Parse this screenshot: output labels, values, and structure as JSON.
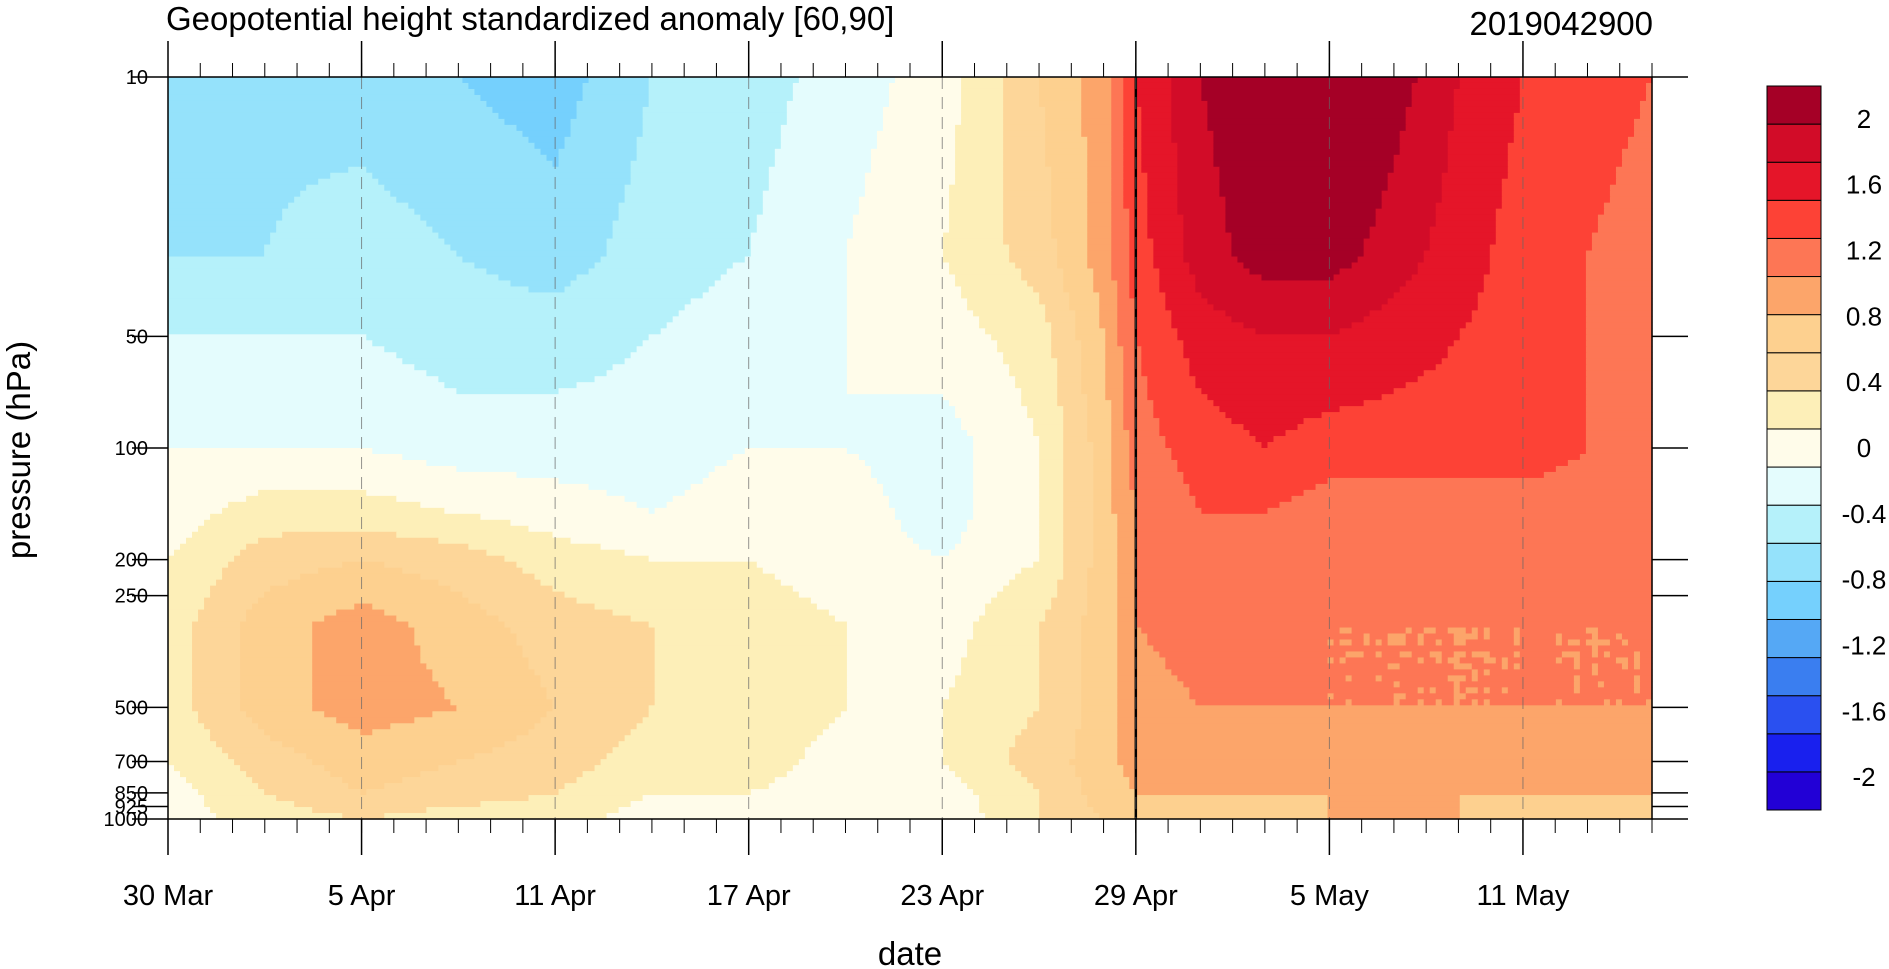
{
  "title": "Geopotential height standardized anomaly [60,90]",
  "date_stamp": "2019042900",
  "colors": {
    "levels": [
      "#2200d6",
      "#1920ee",
      "#2a50f0",
      "#3a7ef0",
      "#55a8f5",
      "#75d0fd",
      "#95e2fb",
      "#b5f1fa",
      "#e4fcfd",
      "#fffcea",
      "#fdefb8",
      "#fdd699",
      "#fdd08f",
      "#fca56a",
      "#fd7655",
      "#fd4236",
      "#e51529",
      "#d20c28",
      "#a50026"
    ],
    "contour_line": "#000000"
  },
  "chart_data": {
    "type": "heatmap",
    "title": "Geopotential height standardized anomaly [60,90]",
    "xlabel": "date",
    "ylabel": "pressure (hPa)",
    "x_ticks": [
      "30 Mar",
      "5 Apr",
      "11 Apr",
      "17 Apr",
      "23 Apr",
      "29 Apr",
      "5 May",
      "11 May"
    ],
    "x_range": [
      "2019-03-30",
      "2019-05-15"
    ],
    "y_scale": "log",
    "y_reversed": true,
    "y_ticks": [
      10,
      50,
      100,
      200,
      250,
      500,
      700,
      850,
      925,
      1000
    ],
    "y_range": [
      10,
      1000
    ],
    "analysis_date_line": "2019-04-29",
    "grid": "dashed vertical at x ticks",
    "colorbar": {
      "labels": [
        "2",
        "1.6",
        "1.2",
        "0.8",
        "0.4",
        "0",
        "-0.4",
        "-0.8",
        "-1.2",
        "-1.6",
        "-2"
      ],
      "min": -2.2,
      "max": 2.2,
      "step": 0.2
    },
    "x_dates": [
      "2019-03-30",
      "2019-04-02",
      "2019-04-05",
      "2019-04-08",
      "2019-04-11",
      "2019-04-14",
      "2019-04-17",
      "2019-04-20",
      "2019-04-23",
      "2019-04-26",
      "2019-04-28",
      "2019-04-29",
      "2019-05-01",
      "2019-05-03",
      "2019-05-05",
      "2019-05-07",
      "2019-05-09",
      "2019-05-11",
      "2019-05-13",
      "2019-05-15"
    ],
    "y_levels": [
      10,
      30,
      50,
      100,
      150,
      200,
      300,
      500,
      700,
      850,
      1000
    ],
    "values": [
      [
        -0.8,
        -0.85,
        -0.9,
        -1.0,
        -1.1,
        -0.8,
        -0.7,
        -0.5,
        -0.3,
        0.2,
        0.5,
        1.0,
        1.4,
        1.6,
        1.7,
        1.5,
        1.2,
        1.0,
        0.9,
        0.8
      ],
      [
        -0.8,
        -0.8,
        -0.7,
        -0.8,
        -0.9,
        -0.7,
        -0.6,
        -0.4,
        -0.2,
        0.1,
        0.5,
        0.9,
        1.3,
        1.5,
        1.5,
        1.3,
        1.1,
        0.9,
        0.8,
        0.7
      ],
      [
        -0.6,
        -0.6,
        -0.6,
        -0.7,
        -0.7,
        -0.6,
        -0.5,
        -0.4,
        -0.3,
        -0.1,
        0.4,
        0.8,
        1.1,
        1.2,
        1.2,
        1.1,
        1.0,
        0.9,
        0.8,
        0.7
      ],
      [
        -0.4,
        -0.4,
        -0.4,
        -0.5,
        -0.5,
        -0.5,
        -0.4,
        -0.4,
        -0.5,
        -0.2,
        0.3,
        0.7,
        0.9,
        1.0,
        0.9,
        0.9,
        0.9,
        0.9,
        0.8,
        0.7
      ],
      [
        -0.3,
        -0.1,
        -0.1,
        -0.2,
        -0.3,
        -0.4,
        -0.3,
        -0.3,
        -0.5,
        -0.2,
        0.3,
        0.6,
        0.8,
        0.8,
        0.7,
        0.7,
        0.7,
        0.7,
        0.7,
        0.7
      ],
      [
        -0.2,
        0.1,
        0.2,
        0.1,
        -0.1,
        -0.2,
        -0.2,
        -0.3,
        -0.4,
        -0.2,
        0.3,
        0.6,
        0.7,
        0.7,
        0.65,
        0.7,
        0.7,
        0.7,
        0.65,
        0.65
      ],
      [
        -0.1,
        0.3,
        0.5,
        0.3,
        0.1,
        0.0,
        -0.1,
        -0.2,
        -0.3,
        0.0,
        0.3,
        0.6,
        0.65,
        0.65,
        0.6,
        0.6,
        0.6,
        0.6,
        0.6,
        0.6
      ],
      [
        -0.1,
        0.3,
        0.5,
        0.4,
        0.2,
        0.0,
        0.0,
        -0.2,
        -0.2,
        0.0,
        0.3,
        0.55,
        0.6,
        0.6,
        0.6,
        0.6,
        0.6,
        0.6,
        0.6,
        0.6
      ],
      [
        -0.2,
        0.1,
        0.3,
        0.2,
        0.1,
        -0.1,
        -0.1,
        -0.3,
        -0.2,
        0.1,
        0.3,
        0.5,
        0.5,
        0.5,
        0.5,
        0.5,
        0.5,
        0.5,
        0.5,
        0.5
      ],
      [
        -0.3,
        0.0,
        0.2,
        0.1,
        0.0,
        -0.2,
        -0.2,
        -0.3,
        -0.3,
        0.0,
        0.3,
        0.4,
        0.4,
        0.4,
        0.4,
        0.4,
        0.4,
        0.4,
        0.4,
        0.4
      ],
      [
        -0.3,
        -0.1,
        0.0,
        -0.1,
        -0.1,
        -0.3,
        -0.3,
        -0.4,
        -0.35,
        0.0,
        0.2,
        0.3,
        0.3,
        0.3,
        0.4,
        0.4,
        0.4,
        0.3,
        0.3,
        0.3
      ]
    ]
  }
}
